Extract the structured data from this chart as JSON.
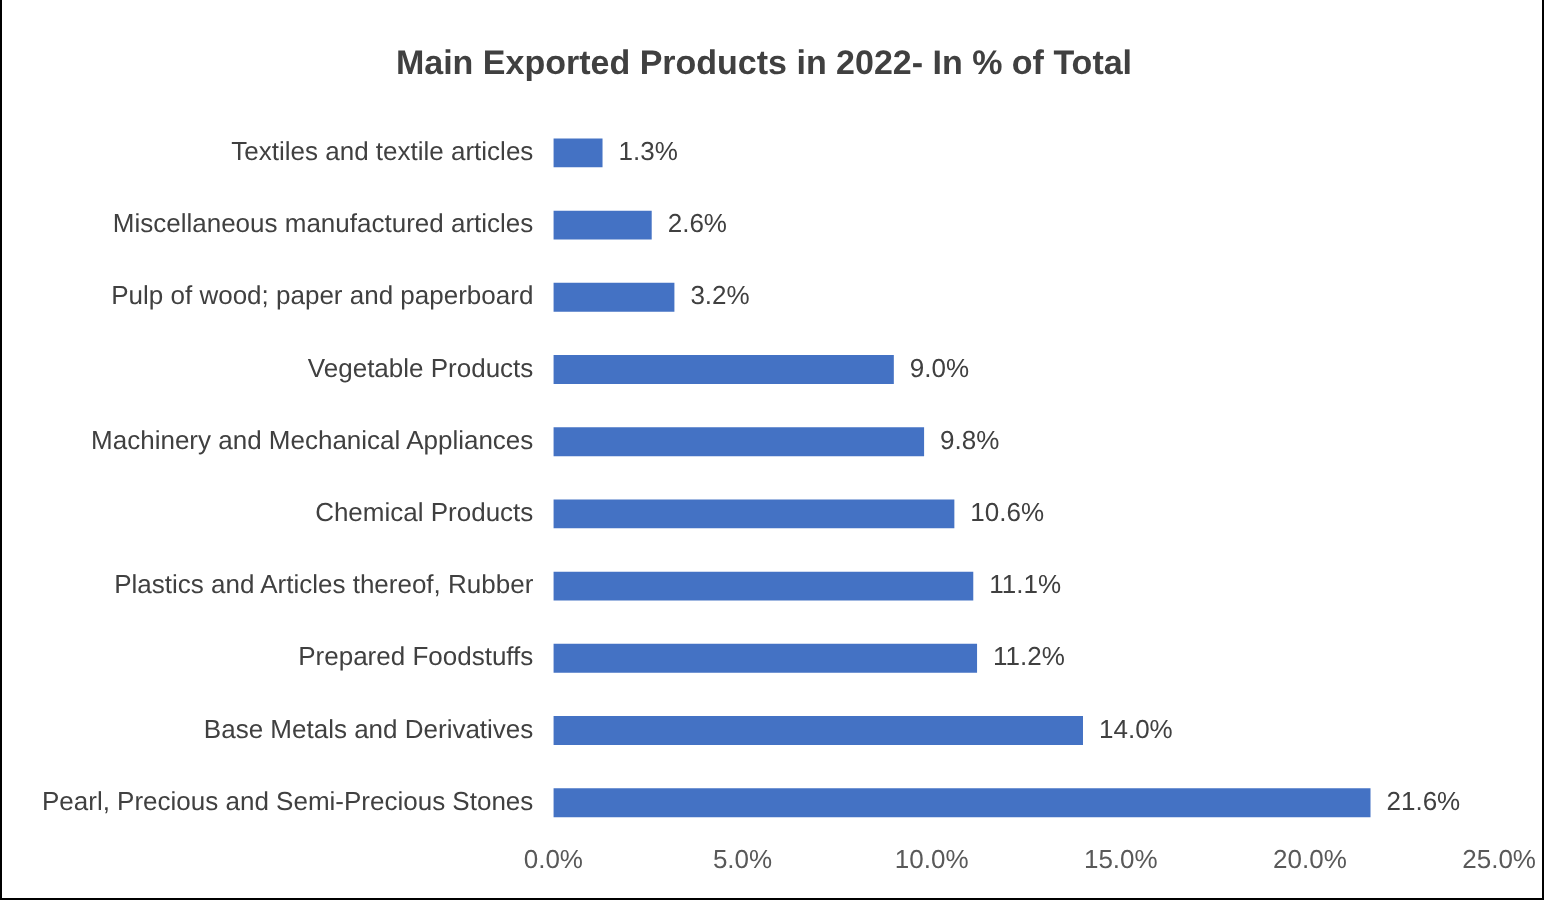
{
  "chart_data": {
    "type": "bar",
    "orientation": "horizontal",
    "title": "Main Exported Products in 2022- In % of Total",
    "categories": [
      "Textiles and textile articles",
      "Miscellaneous manufactured articles",
      "Pulp of wood; paper and paperboard",
      "Vegetable Products",
      "Machinery and Mechanical Appliances",
      "Chemical Products",
      "Plastics and Articles thereof, Rubber",
      "Prepared Foodstuffs",
      "Base Metals and Derivatives",
      "Pearl, Precious and Semi-Precious Stones"
    ],
    "values": [
      1.3,
      2.6,
      3.2,
      9.0,
      9.8,
      10.6,
      11.1,
      11.2,
      14.0,
      21.6
    ],
    "value_labels": [
      "1.3%",
      "2.6%",
      "3.2%",
      "9.0%",
      "9.8%",
      "10.6%",
      "11.1%",
      "11.2%",
      "14.0%",
      "21.6%"
    ],
    "color": "#4472c4",
    "xlim": [
      0,
      25
    ],
    "xticks": [
      {
        "value": 0,
        "label": "0.0%"
      },
      {
        "value": 5,
        "label": "5.0%"
      },
      {
        "value": 10,
        "label": "10.0%"
      },
      {
        "value": 15,
        "label": "15.0%"
      },
      {
        "value": 20,
        "label": "20.0%"
      },
      {
        "value": 25,
        "label": "25.0%"
      }
    ],
    "grid": false,
    "legend": false
  }
}
